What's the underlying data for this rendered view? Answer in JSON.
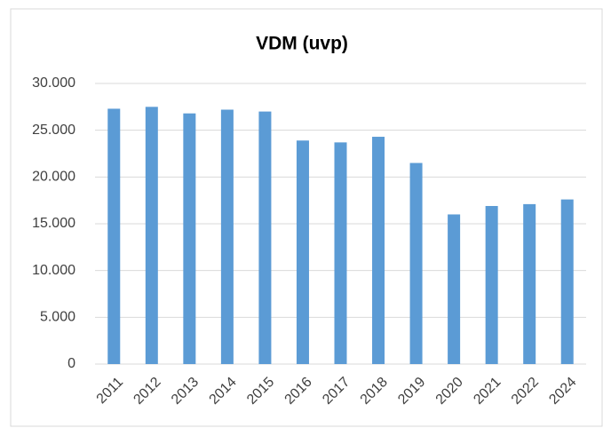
{
  "chart_data": {
    "type": "bar",
    "title": "VDM (uvp)",
    "categories": [
      "2011",
      "2012",
      "2013",
      "2014",
      "2015",
      "2016",
      "2017",
      "2018",
      "2019",
      "2020",
      "2021",
      "2022",
      "2024"
    ],
    "values": [
      27300,
      27500,
      26800,
      27200,
      27000,
      23900,
      23700,
      24300,
      21500,
      16000,
      16900,
      17100,
      17600
    ],
    "color": "#5b9bd5",
    "ylim": [
      0,
      30000
    ],
    "yticks": [
      0,
      {
        "value": 5000,
        "label": "5.000"
      },
      {
        "value": 10000,
        "label": "10.000"
      },
      {
        "value": 15000,
        "label": "15.000"
      },
      {
        "value": 20000,
        "label": "20.000"
      },
      {
        "value": 25000,
        "label": "25.000"
      },
      {
        "value": 30000,
        "label": "30.000"
      }
    ],
    "grid": true
  }
}
